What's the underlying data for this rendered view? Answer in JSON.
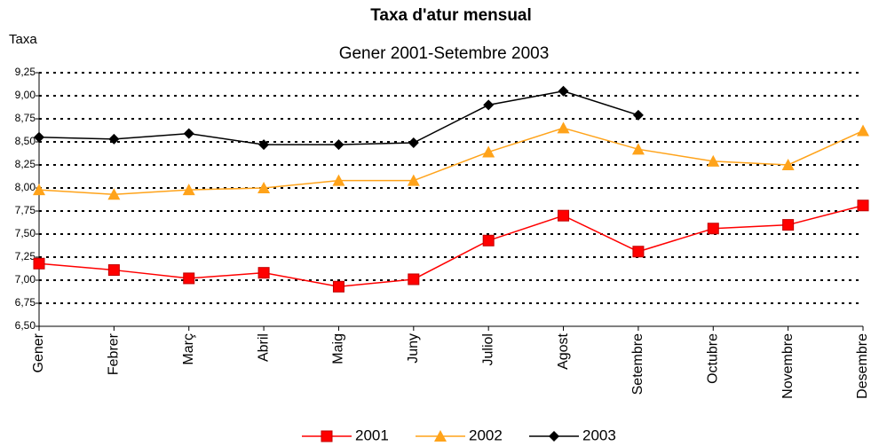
{
  "chart_data": {
    "type": "line",
    "title": "Taxa d'atur mensual",
    "subtitle": "Gener 2001-Setembre 2003",
    "y_label": "Taxa",
    "categories": [
      "Gener",
      "Febrer",
      "Març",
      "Abril",
      "Maig",
      "Juny",
      "Juliol",
      "Agost",
      "Setembre",
      "Octubre",
      "Novembre",
      "Desembre"
    ],
    "series": [
      {
        "name": "2001",
        "color": "#ff0000",
        "marker": "square",
        "values": [
          7.18,
          7.11,
          7.02,
          7.08,
          6.93,
          7.01,
          7.43,
          7.7,
          7.31,
          7.56,
          7.6,
          7.81
        ]
      },
      {
        "name": "2002",
        "color": "#ffa31a",
        "marker": "triangle",
        "values": [
          7.98,
          7.93,
          7.98,
          8.0,
          8.08,
          8.08,
          8.39,
          8.65,
          8.42,
          8.29,
          8.25,
          8.62
        ]
      },
      {
        "name": "2003",
        "color": "#000000",
        "marker": "diamond",
        "values": [
          8.55,
          8.53,
          8.59,
          8.47,
          8.47,
          8.49,
          8.9,
          9.05,
          8.79,
          null,
          null,
          null
        ]
      }
    ],
    "ylim": [
      6.5,
      9.25
    ],
    "yticks": [
      {
        "value": 6.5,
        "label": "6,50"
      },
      {
        "value": 6.75,
        "label": "6,75"
      },
      {
        "value": 7,
        "label": "7,00"
      },
      {
        "value": 7.25,
        "label": "7,25"
      },
      {
        "value": 7.5,
        "label": "7,50"
      },
      {
        "value": 7.75,
        "label": "7,75"
      },
      {
        "value": 8,
        "label": "8,00"
      },
      {
        "value": 8.25,
        "label": "8,25"
      },
      {
        "value": 8.5,
        "label": "8,50"
      },
      {
        "value": 8.75,
        "label": "8,75"
      },
      {
        "value": 9,
        "label": "9,00"
      },
      {
        "value": 9.25,
        "label": "9,25"
      }
    ],
    "grid": true,
    "legend": "bottom"
  }
}
